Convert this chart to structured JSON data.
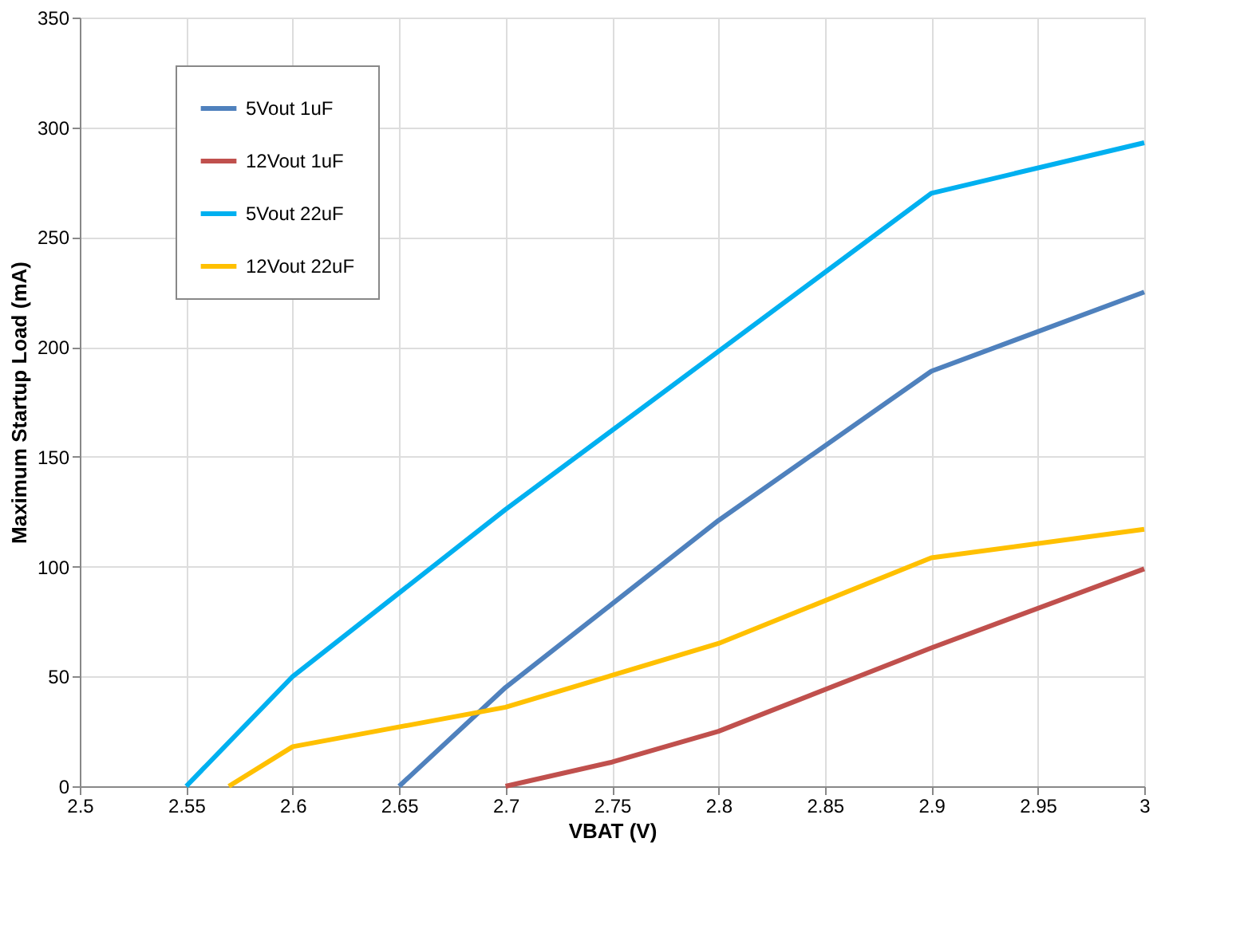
{
  "chart_data": {
    "type": "line",
    "xlabel": "VBAT (V)",
    "ylabel": "Maximum Startup Load (mA)",
    "xlim": [
      2.5,
      3
    ],
    "xticks": [
      2.5,
      2.55,
      2.6,
      2.65,
      2.7,
      2.75,
      2.8,
      2.85,
      2.9,
      2.95,
      3
    ],
    "ylim": [
      0,
      350
    ],
    "yticks": [
      0,
      50,
      100,
      150,
      200,
      250,
      300,
      350
    ],
    "grid": true,
    "legend": "top left",
    "marker": "none",
    "line_style": "solid",
    "series": [
      {
        "name": "5Vout 1uF",
        "color": "#4f81bd",
        "x": [
          2.65,
          2.7,
          2.8,
          2.9,
          3.0
        ],
        "values": [
          0,
          45,
          121,
          189,
          225
        ]
      },
      {
        "name": "12Vout 1uF",
        "color": "#c0504d",
        "x": [
          2.7,
          2.75,
          2.8,
          2.9,
          3.0
        ],
        "values": [
          0,
          11,
          25,
          63,
          99
        ]
      },
      {
        "name": "5Vout 22uF",
        "color": "#00b0f0",
        "x": [
          2.55,
          2.6,
          2.7,
          2.8,
          2.9,
          3.0
        ],
        "values": [
          0,
          50,
          126,
          198,
          270,
          293
        ]
      },
      {
        "name": "12Vout 22uF",
        "color": "#ffc000",
        "x": [
          2.57,
          2.6,
          2.7,
          2.8,
          2.9,
          3.0
        ],
        "values": [
          0,
          18,
          36,
          65,
          104,
          117
        ]
      }
    ]
  }
}
